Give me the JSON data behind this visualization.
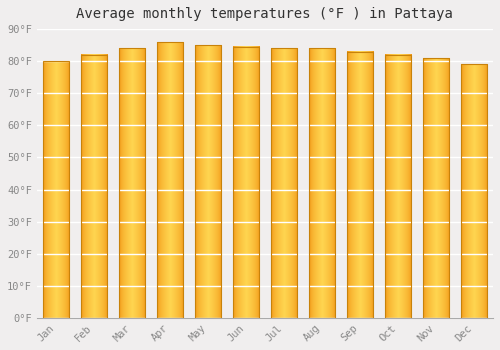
{
  "months": [
    "Jan",
    "Feb",
    "Mar",
    "Apr",
    "May",
    "Jun",
    "Jul",
    "Aug",
    "Sep",
    "Oct",
    "Nov",
    "Dec"
  ],
  "values": [
    80,
    82,
    84,
    86,
    85,
    84.5,
    84,
    84,
    83,
    82,
    81,
    79
  ],
  "title": "Average monthly temperatures (°F ) in Pattaya",
  "ylim": [
    0,
    90
  ],
  "yticks": [
    0,
    10,
    20,
    30,
    40,
    50,
    60,
    70,
    80,
    90
  ],
  "ytick_labels": [
    "0°F",
    "10°F",
    "20°F",
    "30°F",
    "40°F",
    "50°F",
    "60°F",
    "70°F",
    "80°F",
    "90°F"
  ],
  "bar_color_center": "#FFD966",
  "bar_color_edge": "#F5A623",
  "bar_border_color": "#C8820A",
  "background_color": "#f0eeee",
  "grid_color": "#ffffff",
  "title_fontsize": 10,
  "tick_fontsize": 7.5,
  "tick_color": "#888888",
  "title_color": "#333333",
  "bar_width": 0.7
}
